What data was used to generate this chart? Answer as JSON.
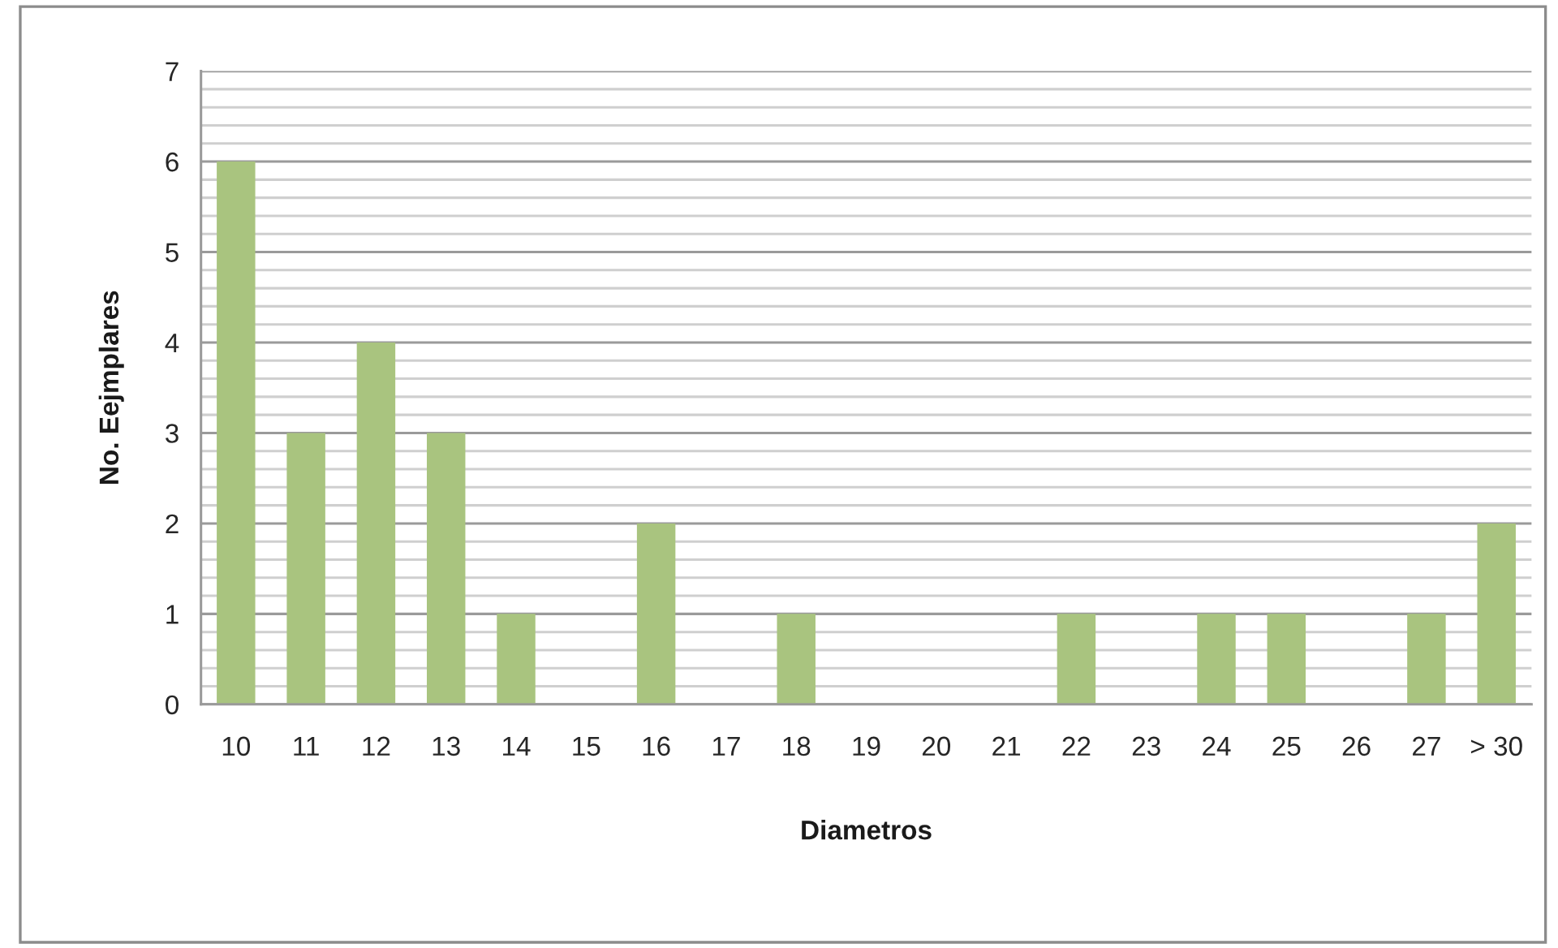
{
  "chart_data": {
    "type": "bar",
    "categories": [
      "10",
      "11",
      "12",
      "13",
      "14",
      "15",
      "16",
      "17",
      "18",
      "19",
      "20",
      "21",
      "22",
      "23",
      "24",
      "25",
      "26",
      "27",
      "> 30"
    ],
    "values": [
      6,
      3,
      4,
      3,
      1,
      0,
      2,
      0,
      1,
      0,
      0,
      0,
      1,
      0,
      1,
      1,
      0,
      1,
      2
    ],
    "color": "#a9c47f",
    "xlabel": "Diametros",
    "ylabel": "No. Eejmplares",
    "ylim": [
      0,
      7
    ],
    "yticks": [
      0,
      {
        "value": 0.2,
        "label": null
      },
      {
        "value": 0.4,
        "label": null
      },
      {
        "value": 0.6,
        "label": null
      },
      {
        "value": 0.8,
        "label": null
      },
      1,
      {
        "value": 1.2,
        "label": null
      },
      {
        "value": 1.4,
        "label": null
      },
      {
        "value": 1.6,
        "label": null
      },
      {
        "value": 1.8,
        "label": null
      },
      2,
      {
        "value": 2.2,
        "label": null
      },
      {
        "value": 2.4,
        "label": null
      },
      {
        "value": 2.6,
        "label": null
      },
      {
        "value": 2.8,
        "label": null
      },
      3,
      {
        "value": 3.2,
        "label": null
      },
      {
        "value": 3.4,
        "label": null
      },
      {
        "value": 3.6,
        "label": null
      },
      {
        "value": 3.8,
        "label": null
      },
      4,
      {
        "value": 4.2,
        "label": null
      },
      {
        "value": 4.4,
        "label": null
      },
      {
        "value": 4.6,
        "label": null
      },
      {
        "value": 4.8,
        "label": null
      },
      5,
      {
        "value": 5.2,
        "label": null
      },
      {
        "value": 5.4,
        "label": null
      },
      {
        "value": 5.6,
        "label": null
      },
      {
        "value": 5.8,
        "label": null
      },
      6,
      {
        "value": 6.2,
        "label": null
      },
      {
        "value": 6.4,
        "label": null
      },
      {
        "value": 6.6,
        "label": null
      },
      {
        "value": 6.8,
        "label": null
      },
      7
    ],
    "grid": "y"
  }
}
